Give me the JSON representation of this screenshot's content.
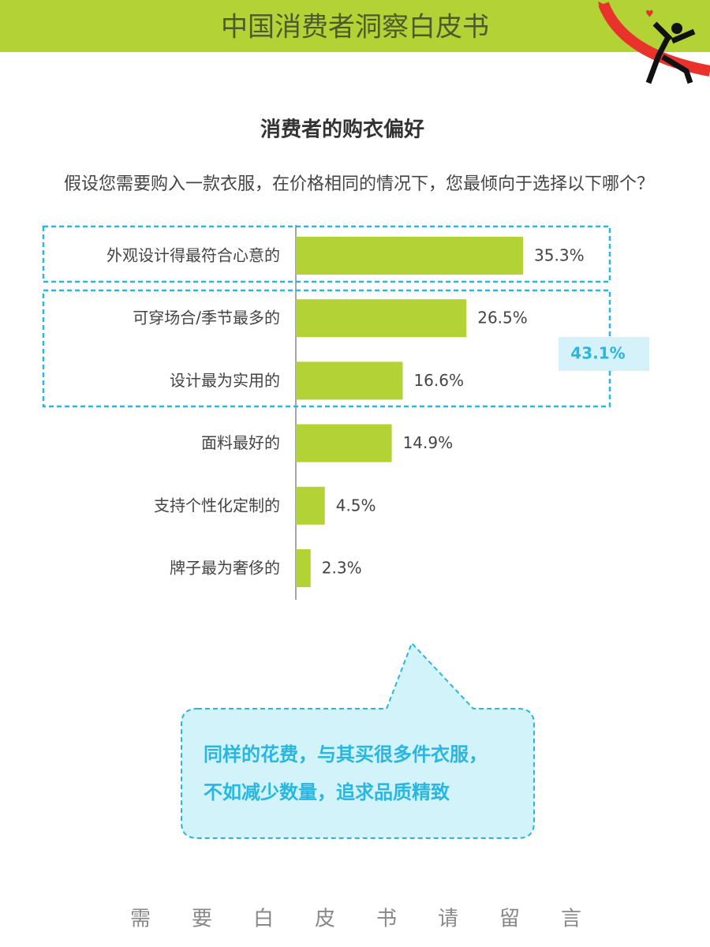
{
  "header": {
    "title": "中国消费者洞察白皮书"
  },
  "chart_data": {
    "type": "bar",
    "orientation": "horizontal",
    "title": "消费者的购衣偏好",
    "subtitle": "假设您需要购入一款衣服，在价格相同的情况下，您最倾向于选择以下哪个？",
    "categories": [
      "外观设计得最符合心意的",
      "可穿场合/季节最多的",
      "设计最为实用的",
      "面料最好的",
      "支持个性化定制的",
      "牌子最为奢侈的"
    ],
    "values": [
      35.3,
      26.5,
      16.6,
      14.9,
      4.5,
      2.3
    ],
    "value_labels": [
      "35.3%",
      "26.5%",
      "16.6%",
      "14.9%",
      "4.5%",
      "2.3%"
    ],
    "color": "#b3d236",
    "group": {
      "value": 43.1,
      "label": "43.1%"
    }
  },
  "callout": {
    "lines": [
      "同样的花费，与其买很多件衣服，",
      "不如减少数量，追求品质精致"
    ]
  },
  "footer": {
    "text": "需要白皮书请留言"
  }
}
